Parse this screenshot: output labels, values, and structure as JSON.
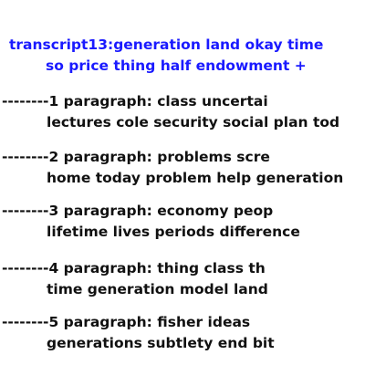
{
  "transcript": {
    "title_line1": "transcript13:generation land okay time",
    "title_line2": "so price thing half endowment +"
  },
  "paragraphs": [
    {
      "line1": "--------1 paragraph: class uncertai",
      "line2": "lectures cole security social plan tod"
    },
    {
      "line1": "--------2 paragraph: problems scre",
      "line2": "home today problem help generation"
    },
    {
      "line1": "--------3 paragraph: economy peop",
      "line2": "lifetime lives periods difference"
    },
    {
      "line1": "--------4 paragraph: thing class th",
      "line2": "time generation model land"
    },
    {
      "line1": "--------5 paragraph: fisher ideas",
      "line2": "generations subtlety end bit"
    }
  ]
}
